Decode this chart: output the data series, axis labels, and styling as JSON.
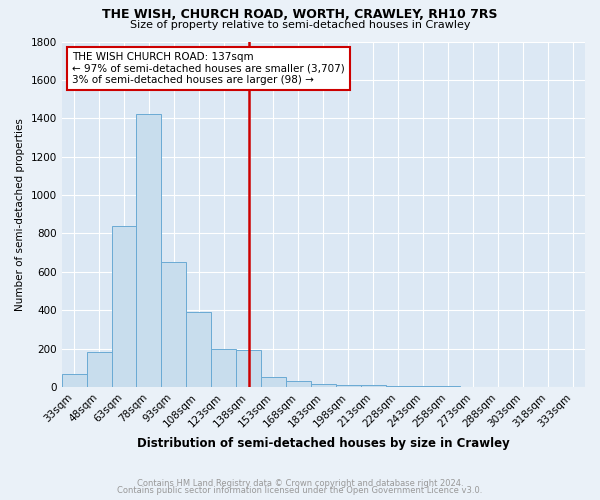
{
  "title": "THE WISH, CHURCH ROAD, WORTH, CRAWLEY, RH10 7RS",
  "subtitle": "Size of property relative to semi-detached houses in Crawley",
  "xlabel": "Distribution of semi-detached houses by size in Crawley",
  "ylabel": "Number of semi-detached properties",
  "bar_color": "#c8dded",
  "bar_edge_color": "#6aaad4",
  "annotation_line_color": "#cc0000",
  "annotation_box_edge": "#cc0000",
  "annotation_text_line1": "THE WISH CHURCH ROAD: 137sqm",
  "annotation_text_line2": "← 97% of semi-detached houses are smaller (3,707)",
  "annotation_text_line3": "3% of semi-detached houses are larger (98) →",
  "footer1": "Contains HM Land Registry data © Crown copyright and database right 2024.",
  "footer2": "Contains public sector information licensed under the Open Government Licence v3.0.",
  "categories": [
    "33sqm",
    "48sqm",
    "63sqm",
    "78sqm",
    "93sqm",
    "108sqm",
    "123sqm",
    "138sqm",
    "153sqm",
    "168sqm",
    "183sqm",
    "198sqm",
    "213sqm",
    "228sqm",
    "243sqm",
    "258sqm",
    "273sqm",
    "288sqm",
    "303sqm",
    "318sqm",
    "333sqm"
  ],
  "values": [
    65,
    180,
    840,
    1420,
    650,
    390,
    200,
    195,
    50,
    30,
    15,
    10,
    8,
    5,
    4,
    3,
    2,
    2,
    2,
    1,
    1
  ],
  "red_line_idx": 7,
  "ylim": [
    0,
    1800
  ],
  "yticks": [
    0,
    200,
    400,
    600,
    800,
    1000,
    1200,
    1400,
    1600,
    1800
  ],
  "background_color": "#eaf1f8",
  "plot_bg_color": "#dce8f4",
  "grid_color": "#ffffff",
  "title_fontsize": 9,
  "subtitle_fontsize": 8
}
